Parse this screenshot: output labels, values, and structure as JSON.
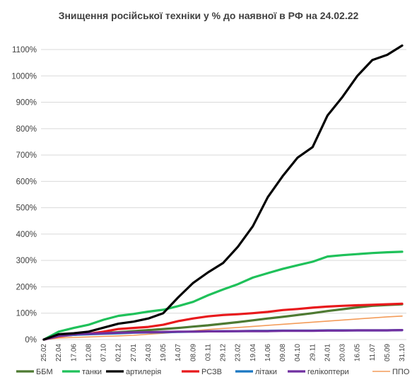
{
  "chart_data": {
    "type": "line",
    "title": "Знищення російської техніки у % до наявної в РФ на 24.02.22",
    "xlabel": "",
    "ylabel": "",
    "y_unit": "%",
    "ylim": [
      0,
      1100
    ],
    "y_ticks": [
      "0%",
      "100%",
      "200%",
      "300%",
      "400%",
      "500%",
      "600%",
      "700%",
      "800%",
      "900%",
      "1000%",
      "1100%"
    ],
    "x_labels": [
      "25.02",
      "22.04",
      "17.06",
      "12.08",
      "07.10",
      "02.12",
      "27.01",
      "24.03",
      "19.05",
      "14.07",
      "08.09",
      "03.11",
      "29.12",
      "23.02",
      "19.04",
      "14.06",
      "09.08",
      "04.10",
      "29.11",
      "24.01",
      "20.03",
      "16.05",
      "11.07",
      "05.09",
      "31.10"
    ],
    "grid": "horizontal",
    "legend_position": "bottom",
    "series": [
      {
        "name": "ББМ",
        "color": "#4e7a32",
        "values": [
          0,
          14,
          18,
          22,
          25,
          28,
          32,
          36,
          40,
          44,
          49,
          54,
          60,
          66,
          73,
          80,
          86,
          93,
          100,
          108,
          115,
          122,
          128,
          131,
          134
        ]
      },
      {
        "name": "танки",
        "color": "#1fc15a",
        "values": [
          0,
          30,
          44,
          56,
          75,
          90,
          97,
          106,
          113,
          127,
          143,
          168,
          190,
          210,
          235,
          252,
          268,
          282,
          295,
          315,
          320,
          324,
          328,
          331,
          333
        ]
      },
      {
        "name": "артилерія",
        "color": "#000000",
        "values": [
          0,
          20,
          24,
          30,
          45,
          60,
          68,
          80,
          100,
          160,
          215,
          255,
          290,
          352,
          430,
          540,
          620,
          690,
          730,
          850,
          920,
          1000,
          1060,
          1080,
          1115
        ]
      },
      {
        "name": "РСЗВ",
        "color": "#e8191c",
        "values": [
          0,
          12,
          18,
          22,
          30,
          40,
          44,
          48,
          56,
          70,
          80,
          88,
          93,
          96,
          100,
          105,
          112,
          116,
          121,
          125,
          128,
          130,
          132,
          134,
          136
        ]
      },
      {
        "name": "літаки",
        "color": "#1a78c2",
        "values": [
          0,
          14,
          18,
          20,
          22,
          24,
          26,
          27,
          28,
          29,
          30,
          31,
          32,
          32,
          33,
          33,
          34,
          34,
          34,
          35,
          35,
          35,
          35,
          35,
          36
        ]
      },
      {
        "name": "гелікоптери",
        "color": "#7030a0",
        "values": [
          0,
          14,
          20,
          22,
          24,
          26,
          27,
          28,
          29,
          30,
          30,
          31,
          31,
          32,
          32,
          32,
          33,
          33,
          33,
          34,
          34,
          35,
          35,
          35,
          36
        ]
      },
      {
        "name": "ППО",
        "color": "#f39c5a",
        "values": [
          0,
          6,
          8,
          10,
          12,
          14,
          16,
          20,
          24,
          28,
          33,
          38,
          42,
          46,
          50,
          54,
          58,
          62,
          66,
          70,
          74,
          78,
          82,
          86,
          89
        ]
      }
    ]
  }
}
